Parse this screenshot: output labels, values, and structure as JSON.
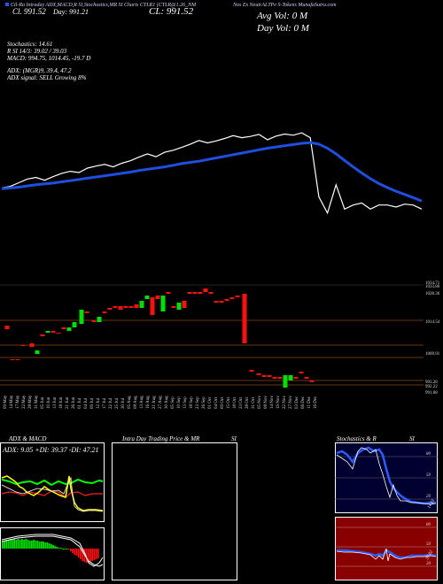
{
  "header": {
    "line1": "Ctl-Ra Intraday ADX,MACD,R SI,Stochastics,MR SI Charts CTLR1 (CTLR@1.26_NM",
    "line1b": "Nos Ex NeutrALTPe S-Tokens MunafaSutra.com",
    "price_left": "Cl. 991.52",
    "price_left_small": "Day: 991.21",
    "price_right": "CL: 991.52",
    "vol": "Avg Vol: 0 M",
    "dayvol": "Day Vol: 0 M"
  },
  "indicators": {
    "stochastics": "Stochastics: 14.61",
    "rsi": "R SI 14/3: 39.02 / 39.03",
    "macd": "MACD: 994.75, 1014.45, -19.7 D",
    "adx": "ADX: (MGR)9, 39.4, 47.2",
    "adx_signal": "ADX signal: SELL Growing 8%"
  },
  "price_levels": [
    "1034.71",
    "1033.80",
    "1028.36",
    "1014.54",
    "1009.91",
    "993.28",
    "992.22",
    "991.08"
  ],
  "dates": [
    "09 May",
    "14 May",
    "17 May",
    "22 May",
    "28 May",
    "31 May",
    "05 Jun",
    "10 Jun",
    "13 Jun",
    "18 Jun",
    "21 Jun",
    "26 Jun",
    "01 Jul",
    "04 Jul",
    "09 Jul",
    "12 Jul",
    "17 Jul",
    "22 Jul",
    "25 Jul",
    "30 Jul",
    "05 Aug",
    "08 Aug",
    "13 Aug",
    "16 Aug",
    "21 Aug",
    "27 Aug",
    "30 Aug",
    "05 Sep",
    "10 Sep",
    "13 Sep",
    "18 Sep",
    "23 Sep",
    "26 Sep",
    "01 Oct",
    "04 Oct",
    "09 Oct",
    "15 Oct",
    "18 Oct",
    "23 Oct",
    "28 Oct",
    "31 Oct",
    "05 Nov",
    "08 Nov",
    "14 Nov",
    "19 Nov",
    "22 Nov",
    "27 Nov",
    "03 Dec",
    "06 Dec",
    "11 Dec",
    "16 Dec"
  ],
  "panels": {
    "adx_title": "ADX & MACD",
    "adx_value": "ADX: 9.05 +DI: 39.37 -DI: 47.21",
    "intraday_title": "Intra Day Trading Price & MR",
    "intraday_si": "SI",
    "stoch_title": "Stochastics & R",
    "stoch_si": "SI",
    "stoch_levels": [
      "80",
      "50",
      "20"
    ],
    "stoch_value": "14.61",
    "rsi_levels": [
      "80",
      "50",
      "20"
    ],
    "rsi_value": "39.02"
  },
  "colors": {
    "ma": "#1f4fe0",
    "up": "#00e000",
    "down": "#ff1010",
    "level_line": "#8a4a1a",
    "rsi_bg": "#880000",
    "stoch_bg": "#000030"
  },
  "chart_data": {
    "type": "line",
    "series": [
      {
        "values": [
          990.2,
          990.6,
          991.5,
          992.4,
          992.8,
          992.1,
          993.0,
          993.8,
          994.3,
          994.0,
          995.1,
          995.6,
          996.0,
          995.4,
          996.3,
          996.9,
          997.8,
          998.6,
          997.9,
          999.0,
          999.5,
          1000.2,
          1001.0,
          1001.9,
          1001.3,
          1001.8,
          1002.4,
          1003.1,
          1002.6,
          1002.9,
          1003.4,
          1002.1,
          1003.0,
          1003.5,
          1003.2,
          1003.8,
          1002.6,
          988.0,
          984.0,
          991.0,
          985.0,
          986.0,
          986.5,
          985.0,
          986.0,
          986.0,
          985.5,
          986.2,
          986.0,
          985.0
        ]
      },
      {
        "values": [
          990.0,
          990.2,
          990.4,
          990.7,
          991.0,
          991.2,
          991.4,
          991.7,
          992.0,
          992.3,
          992.6,
          992.9,
          993.2,
          993.5,
          993.8,
          994.1,
          994.5,
          994.8,
          995.1,
          995.4,
          995.8,
          996.2,
          996.5,
          996.8,
          997.2,
          997.6,
          998.0,
          998.4,
          998.8,
          999.2,
          999.6,
          1000.0,
          1000.3,
          1000.6,
          1000.9,
          1001.2,
          1001.4,
          1001.0,
          1000.0,
          998.6,
          997.0,
          995.4,
          993.9,
          992.5,
          991.3,
          990.3,
          989.4,
          988.6,
          987.8,
          987.0
        ]
      }
    ],
    "ylim": [
      982,
      1006
    ]
  }
}
